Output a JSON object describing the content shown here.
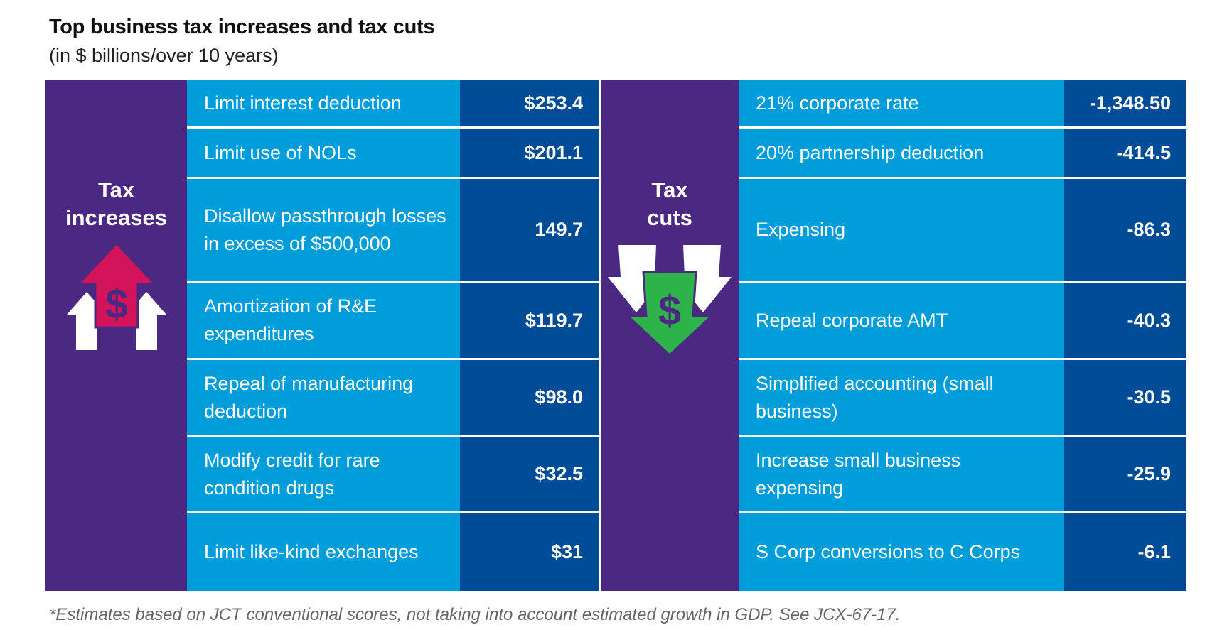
{
  "title": "Top business tax increases and tax cuts",
  "subtitle": "(in $ billions/over 10 years)",
  "increases": {
    "heading_line1": "Tax",
    "heading_line2": "increases",
    "icon": "dollar-up-arrows-icon",
    "rows": [
      {
        "label": "Limit interest deduction",
        "value": "$253.4"
      },
      {
        "label": "Limit use of NOLs",
        "value": "$201.1"
      },
      {
        "label": "Disallow passthrough losses in excess of $500,000",
        "value": "149.7"
      },
      {
        "label": "Amortization of R&E expenditures",
        "value": "$119.7"
      },
      {
        "label": "Repeal of manufacturing deduction",
        "value": "$98.0"
      },
      {
        "label": "Modify credit for rare condition drugs",
        "value": "$32.5"
      },
      {
        "label": "Limit like-kind exchanges",
        "value": "$31"
      }
    ]
  },
  "cuts": {
    "heading_line1": "Tax",
    "heading_line2": "cuts",
    "icon": "dollar-down-arrows-icon",
    "rows": [
      {
        "label": "21% corporate rate",
        "value": "-1,348.50"
      },
      {
        "label": "20% partnership deduction",
        "value": "-414.5"
      },
      {
        "label": "Expensing",
        "value": "-86.3"
      },
      {
        "label": "Repeal corporate AMT",
        "value": "-40.3"
      },
      {
        "label": "Simplified accounting (small business)",
        "value": "-30.5"
      },
      {
        "label": "Increase small business expensing",
        "value": "-25.9"
      },
      {
        "label": "S Corp conversions to C Corps",
        "value": "-6.1"
      }
    ]
  },
  "footnote": "*Estimates based on JCT conventional scores, not taking into account estimated growth in GDP. See JCX-67-17.",
  "colors": {
    "purple": "#4b2882",
    "light_blue": "#009ddb",
    "dark_blue": "#004c97",
    "up_arrow": "#d4145a",
    "down_arrow": "#2db34a"
  }
}
